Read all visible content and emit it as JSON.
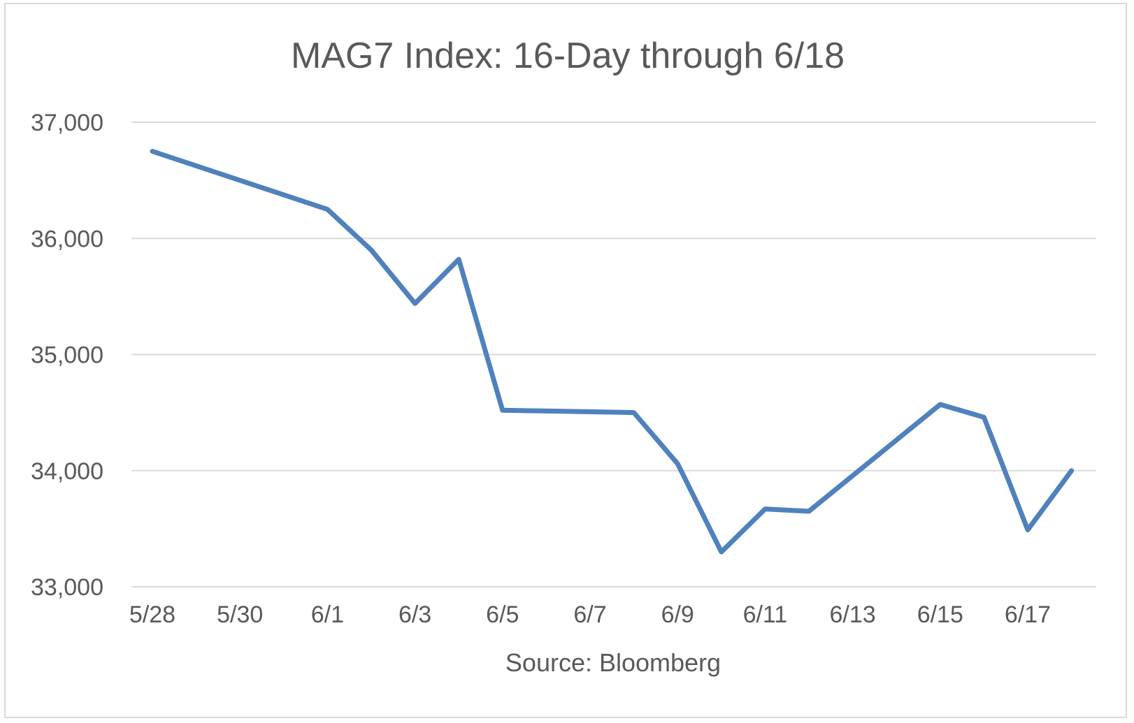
{
  "chart_data": {
    "type": "line",
    "title": "MAG7 Index: 16-Day through 6/18",
    "xlabel": "Source: Bloomberg",
    "ylabel": "",
    "ylim": [
      33000,
      37000
    ],
    "yticks": [
      33000,
      34000,
      35000,
      36000,
      37000
    ],
    "ytick_labels": [
      "33,000",
      "34,000",
      "35,000",
      "36,000",
      "37,000"
    ],
    "xtick_labels": [
      "5/28",
      "5/30",
      "6/1",
      "6/3",
      "6/5",
      "6/7",
      "6/9",
      "6/11",
      "6/13",
      "6/15",
      "6/17"
    ],
    "grid": true,
    "legend": "none",
    "color": "#4f81bd",
    "series": [
      {
        "x": [
          "5/28",
          "6/1",
          "6/2",
          "6/3",
          "6/4",
          "6/5",
          "6/8",
          "6/9",
          "6/10",
          "6/11",
          "6/12",
          "6/15",
          "6/16",
          "6/17",
          "6/18"
        ],
        "values": [
          36750,
          36250,
          35900,
          35440,
          35820,
          34520,
          34500,
          34060,
          33300,
          33670,
          33650,
          34570,
          34460,
          33490,
          34000
        ]
      }
    ]
  }
}
